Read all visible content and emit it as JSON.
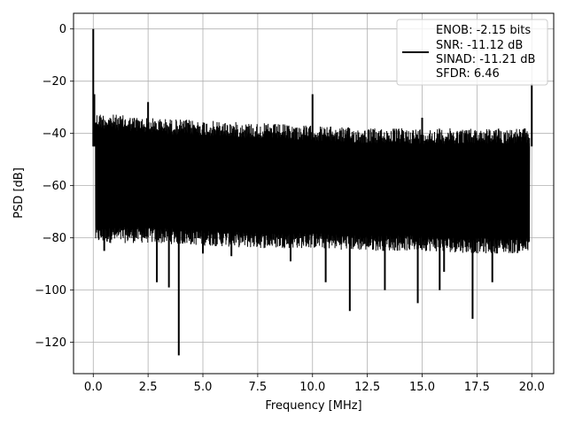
{
  "chart_data": {
    "type": "line",
    "title": "",
    "xlabel": "Frequency [MHz]",
    "ylabel": "PSD [dB]",
    "xlim": [
      -0.9,
      21.0
    ],
    "ylim": [
      -132,
      6
    ],
    "xticks": [
      0.0,
      2.5,
      5.0,
      7.5,
      10.0,
      12.5,
      15.0,
      17.5,
      20.0
    ],
    "xtick_labels": [
      "0.0",
      "2.5",
      "5.0",
      "7.5",
      "10.0",
      "12.5",
      "15.0",
      "17.5",
      "20.0"
    ],
    "yticks": [
      0,
      -20,
      -40,
      -60,
      -80,
      -100,
      -120
    ],
    "ytick_labels": [
      "0",
      "−20",
      "−40",
      "−60",
      "−80",
      "−100",
      "−120"
    ],
    "grid": true,
    "legend_position": "upper-right",
    "series": [
      {
        "color": "#000000",
        "noise_band": {
          "x": [
            0.1,
            2.5,
            5.0,
            7.5,
            10.0,
            12.5,
            15.0,
            17.5,
            19.9
          ],
          "upper": [
            -32,
            -34,
            -35,
            -36,
            -37,
            -38,
            -38,
            -38,
            -38
          ],
          "lower": [
            -82,
            -82,
            -83,
            -84,
            -84,
            -85,
            -85,
            -86,
            -86
          ]
        },
        "spurs": [
          {
            "x": 0.0,
            "y": 0.0
          },
          {
            "x": 0.05,
            "y": -25
          },
          {
            "x": 2.5,
            "y": -28
          },
          {
            "x": 10.0,
            "y": -25
          },
          {
            "x": 15.0,
            "y": -34
          },
          {
            "x": 20.0,
            "y": -21
          }
        ],
        "dips": [
          {
            "x": 0.5,
            "y": -85
          },
          {
            "x": 2.9,
            "y": -97
          },
          {
            "x": 3.45,
            "y": -99
          },
          {
            "x": 3.9,
            "y": -125
          },
          {
            "x": 5.0,
            "y": -86
          },
          {
            "x": 6.3,
            "y": -87
          },
          {
            "x": 9.0,
            "y": -89
          },
          {
            "x": 10.6,
            "y": -97
          },
          {
            "x": 11.7,
            "y": -108
          },
          {
            "x": 13.3,
            "y": -100
          },
          {
            "x": 14.8,
            "y": -105
          },
          {
            "x": 15.8,
            "y": -100
          },
          {
            "x": 16.0,
            "y": -93
          },
          {
            "x": 17.3,
            "y": -111
          },
          {
            "x": 18.2,
            "y": -97
          }
        ]
      }
    ],
    "legend_lines": [
      "ENOB: -2.15 bits",
      "SNR: -11.12 dB",
      "SINAD: -11.21 dB",
      "SFDR: 6.46"
    ]
  }
}
